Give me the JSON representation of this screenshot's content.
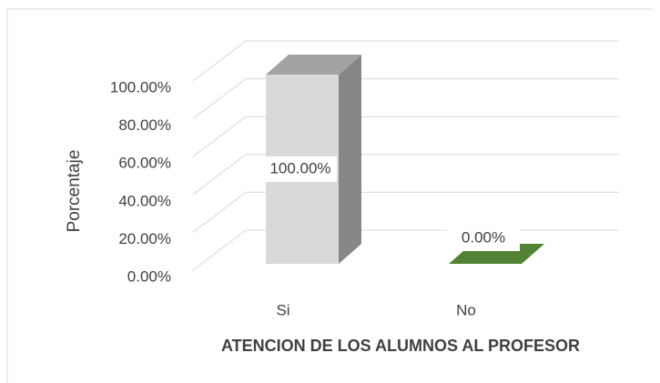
{
  "chart_data": {
    "type": "bar3d",
    "x_label": "ATENCION DE LOS ALUMNOS AL PROFESOR",
    "y_label": "Porcentaje",
    "categories": [
      "Si",
      "No"
    ],
    "values": [
      100,
      0
    ],
    "value_labels": [
      "100.00%",
      "0.00%"
    ],
    "colors": [
      "#d9d9d9",
      "#70ad47"
    ],
    "ylim": [
      0,
      100
    ],
    "yticks": [
      {
        "value": 0,
        "label": "0.00%"
      },
      {
        "value": 20,
        "label": "20.00%"
      },
      {
        "value": 40,
        "label": "40.00%"
      },
      {
        "value": 60,
        "label": "60.00%"
      },
      {
        "value": 80,
        "label": "80.00%"
      },
      {
        "value": 100,
        "label": "100.00%"
      }
    ],
    "grid": true
  }
}
